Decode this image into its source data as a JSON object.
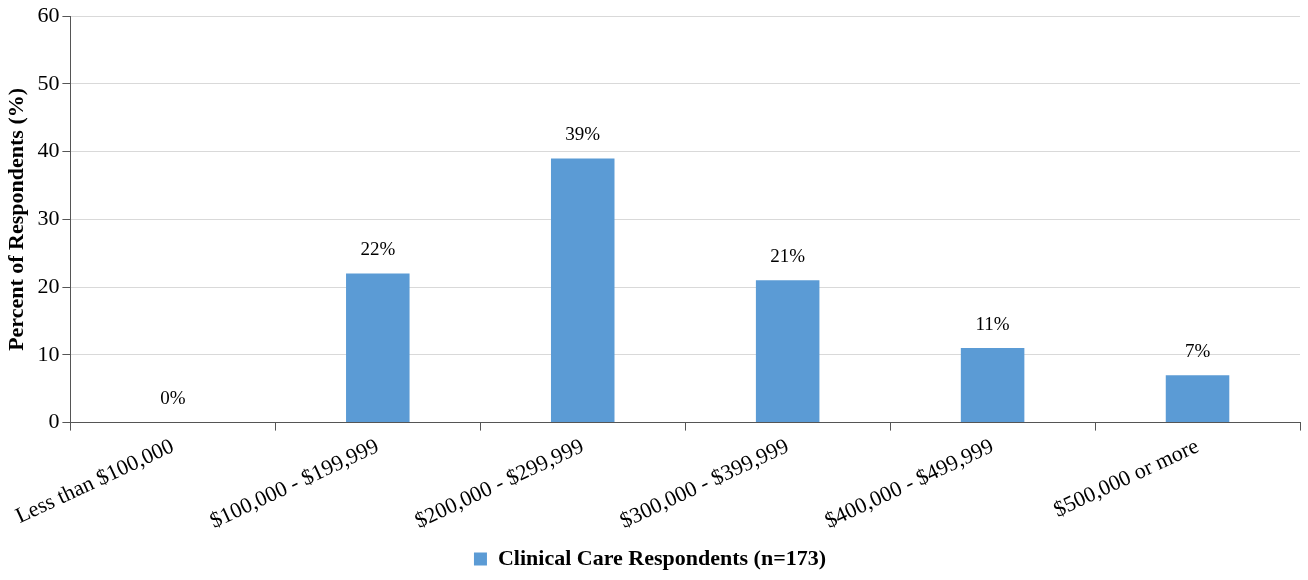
{
  "chart_data": {
    "type": "bar",
    "ylabel": "Percent of Respondents (%)",
    "categories": [
      "Less than $100,000",
      "$100,000 - $199,999",
      "$200,000 - $299,999",
      "$300,000 - $399,999",
      "$400,000 - $499,999",
      "$500,000 or more"
    ],
    "series": [
      {
        "name": "Clinical Care Respondents (n=173)",
        "color": "#5b9bd5",
        "values": [
          0,
          22,
          39,
          21,
          11,
          7
        ],
        "value_labels": [
          "0%",
          "22%",
          "39%",
          "21%",
          "11%",
          "7%"
        ]
      }
    ],
    "ylim": [
      0,
      60
    ],
    "yticks": [
      0,
      10,
      20,
      30,
      40,
      50,
      60
    ],
    "grid": "y",
    "legend": "bottom"
  }
}
